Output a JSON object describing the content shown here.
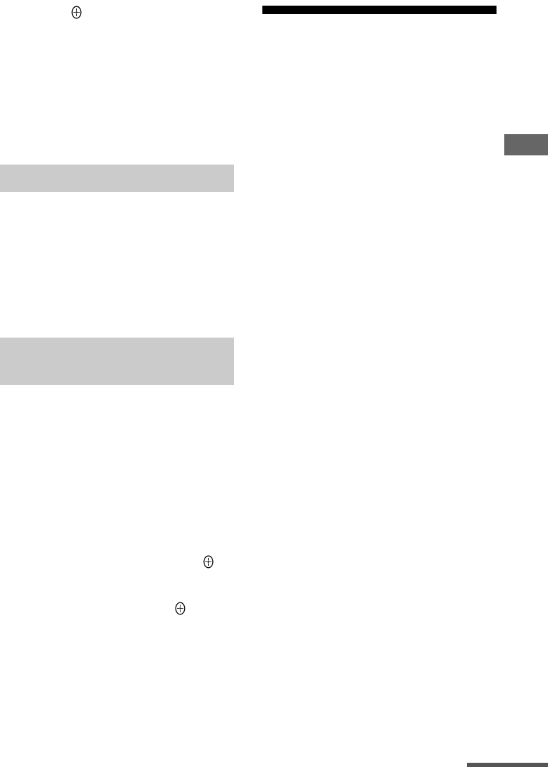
{
  "colors": {
    "page_background": "#ffffff",
    "section_bar": "#cbcbcb",
    "heading_rule": "#000000",
    "side_tab": "#666666",
    "footer_rule": "#555555"
  },
  "icons": [
    "enter-button-icon",
    "enter-button-icon",
    "enter-button-icon"
  ]
}
